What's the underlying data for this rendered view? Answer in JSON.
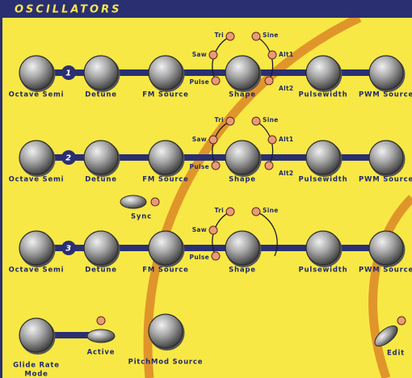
{
  "header": {
    "title": "OSCILLATORS"
  },
  "oscillators": [
    {
      "number": "1",
      "knobs": [
        "Octave Semi",
        "Detune",
        "FM Source",
        "Shape",
        "Pulsewidth",
        "PWM Source"
      ],
      "shapes": [
        "Tri",
        "Sine",
        "Saw",
        "Pulse",
        "Alt1",
        "Alt2"
      ]
    },
    {
      "number": "2",
      "knobs": [
        "Octave Semi",
        "Detune",
        "FM Source",
        "Shape",
        "Pulsewidth",
        "PWM Source"
      ],
      "shapes": [
        "Tri",
        "Sine",
        "Saw",
        "Pulse",
        "Alt1",
        "Alt2"
      ]
    },
    {
      "number": "3",
      "knobs": [
        "Octave Semi",
        "Detune",
        "FM Source",
        "Shape",
        "Pulsewidth",
        "PWM Source"
      ],
      "shapes": [
        "Tri",
        "Sine",
        "Saw",
        "Pulse"
      ]
    }
  ],
  "sync": {
    "label": "Sync"
  },
  "glide": {
    "knob": "Glide Rate",
    "mode": "Mode",
    "button": "Active"
  },
  "pitchmod": {
    "knob": "PitchMod Source"
  },
  "edit": {
    "button": "Edit"
  }
}
